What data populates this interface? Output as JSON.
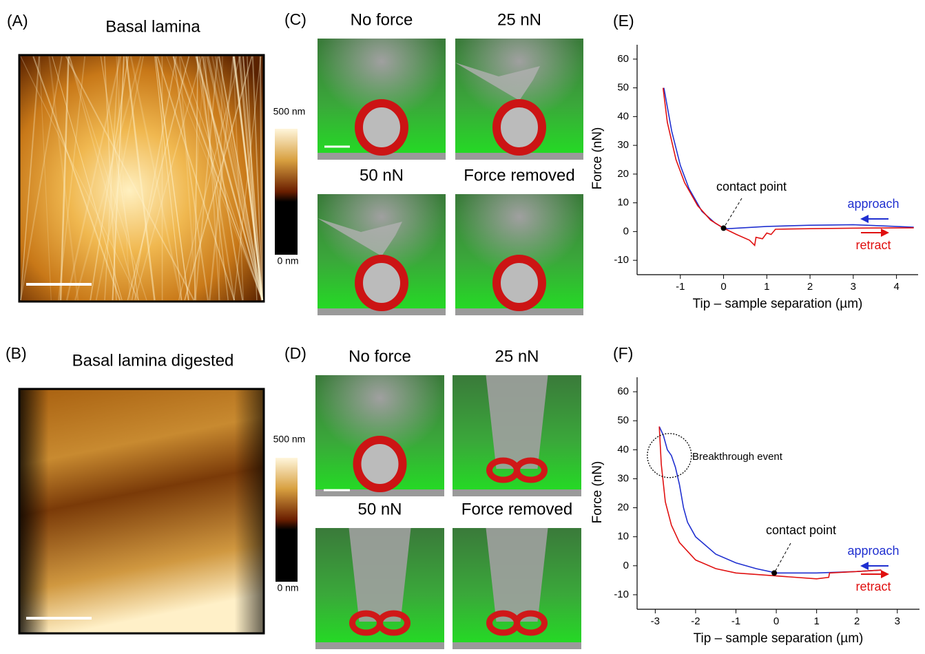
{
  "panels": {
    "A": {
      "label": "(A)",
      "title": "Basal lamina",
      "colorbar_max": "500 nm",
      "colorbar_min": "0 nm"
    },
    "B": {
      "label": "(B)",
      "title": "Basal lamina digested",
      "colorbar_max": "500 nm",
      "colorbar_min": "0 nm"
    },
    "C": {
      "label": "(C)",
      "titles": [
        "No force",
        "25 nN",
        "50 nN",
        "Force removed"
      ]
    },
    "D": {
      "label": "(D)",
      "titles": [
        "No force",
        "25 nN",
        "50 nN",
        "Force removed"
      ]
    }
  },
  "chart_data": [
    {
      "type": "line",
      "label": "(E)",
      "x_label": "Tip – sample separation (µm)",
      "y_label": "Force (nN)",
      "xlim": [
        -2,
        4.5
      ],
      "ylim": [
        -15,
        65
      ],
      "xticks": [
        -1,
        0,
        1,
        2,
        3,
        4
      ],
      "yticks": [
        -10,
        0,
        10,
        20,
        30,
        40,
        50,
        60
      ],
      "series": [
        {
          "name": "approach",
          "color": "#1f2fd0",
          "x": [
            -1.38,
            -1.2,
            -1.0,
            -0.8,
            -0.5,
            -0.2,
            0,
            0.1,
            1,
            2,
            3,
            4,
            4.4
          ],
          "values": [
            50,
            35,
            23,
            15,
            7,
            3,
            1.2,
            1,
            1.8,
            2.2,
            2.4,
            1.8,
            1.5
          ]
        },
        {
          "name": "retract",
          "color": "#e01010",
          "x": [
            -1.4,
            -1.3,
            -1.1,
            -0.9,
            -0.6,
            -0.3,
            0,
            0.3,
            0.6,
            0.72,
            0.75,
            0.9,
            1.0,
            1.1,
            1.2,
            2,
            3,
            4.4
          ],
          "values": [
            50,
            38,
            25,
            17,
            9,
            4,
            1.2,
            -1,
            -3,
            -4.8,
            -2,
            -2.5,
            -0.5,
            -1,
            0.8,
            1,
            1.2,
            1.3
          ]
        }
      ],
      "annotations": [
        {
          "text": "contact point",
          "x": 0,
          "y": 1.2
        }
      ]
    },
    {
      "type": "line",
      "label": "(F)",
      "x_label": "Tip – sample separation (µm)",
      "y_label": "Force (nN)",
      "xlim": [
        -3.45,
        3.55
      ],
      "ylim": [
        -15,
        65
      ],
      "xticks": [
        -3,
        -2,
        -1,
        0,
        1,
        2,
        3
      ],
      "yticks": [
        -10,
        0,
        10,
        20,
        30,
        40,
        50,
        60
      ],
      "series": [
        {
          "name": "approach",
          "color": "#1f2fd0",
          "x": [
            -2.9,
            -2.8,
            -2.7,
            -2.6,
            -2.5,
            -2.4,
            -2.3,
            -2.2,
            -2,
            -1.5,
            -1,
            -0.5,
            0,
            1,
            2,
            2.6
          ],
          "values": [
            48,
            45,
            40,
            38,
            34,
            28,
            20,
            15,
            10,
            4,
            1,
            -1,
            -2.5,
            -2.5,
            -2,
            -1.5
          ]
        },
        {
          "name": "retract",
          "color": "#e01010",
          "x": [
            -2.9,
            -2.85,
            -2.75,
            -2.6,
            -2.4,
            -2,
            -1.5,
            -1,
            0,
            1,
            1.3,
            1.32,
            2,
            2.6
          ],
          "values": [
            48,
            35,
            22,
            14,
            8,
            2,
            -1,
            -2.5,
            -3.5,
            -4.5,
            -4,
            -2.5,
            -2,
            -1.5
          ]
        }
      ],
      "annotations": [
        {
          "text": "Breakthrough event",
          "x": -2.65,
          "y": 38
        },
        {
          "text": "contact point",
          "x": -0.05,
          "y": -2.5
        }
      ]
    }
  ]
}
